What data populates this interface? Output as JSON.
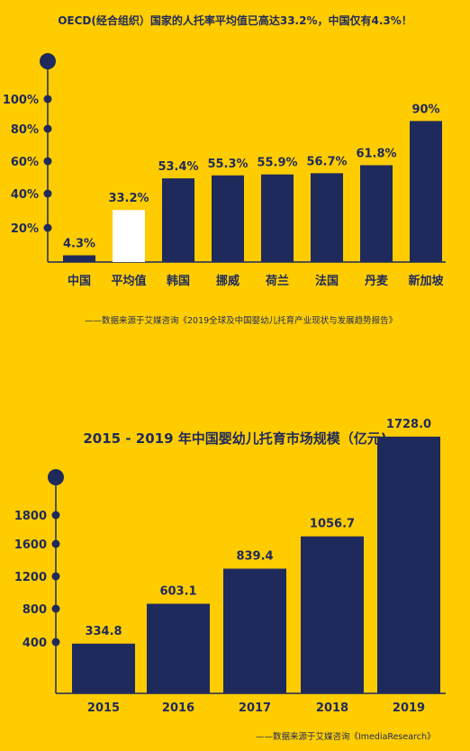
{
  "chart_data": [
    {
      "type": "bar",
      "title": "OECD(经合组织）国家的人托率平均值已高达33.2%，中国仅有4.3%！",
      "categories": [
        "中国",
        "平均值",
        "韩国",
        "挪威",
        "荷兰",
        "法国",
        "丹麦",
        "新加坡"
      ],
      "values": [
        4.3,
        33.2,
        53.4,
        55.3,
        55.9,
        56.7,
        61.8,
        90
      ],
      "data_labels": [
        "4.3%",
        "33.2%",
        "53.4%",
        "55.3%",
        "55.9%",
        "56.7%",
        "61.8%",
        "90%"
      ],
      "y_ticks": [
        "20%",
        "40%",
        "60%",
        "80%",
        "100%"
      ],
      "y_tick_values": [
        20,
        40,
        60,
        80,
        100
      ],
      "ylim": [
        0,
        100
      ],
      "highlight_category": "平均值",
      "source": "——数据来源于艾媒咨询《2019全球及中国婴幼儿托育产业现状与发展趋势报告》"
    },
    {
      "type": "bar",
      "title": "2015 - 2019  年中国婴幼儿托育市场规模（亿元)",
      "categories": [
        "2015",
        "2016",
        "2017",
        "2018",
        "2019"
      ],
      "values": [
        334.8,
        603.1,
        839.4,
        1056.7,
        1728.0
      ],
      "data_labels": [
        "334.8",
        "603.1",
        "839.4",
        "1056.7",
        "1728.0"
      ],
      "y_ticks": [
        "400",
        "800",
        "1200",
        "1600",
        "1800"
      ],
      "y_tick_values": [
        400,
        800,
        1200,
        1600,
        1800
      ],
      "ylim": [
        0,
        1800
      ],
      "source": "——数据来源于艾媒咨询《ImediaResearch》"
    }
  ],
  "colors": {
    "background": "#ffcc00",
    "bar": "#1f2a5c",
    "highlight_bar": "#ffffff",
    "text": "#1f2a5c"
  }
}
